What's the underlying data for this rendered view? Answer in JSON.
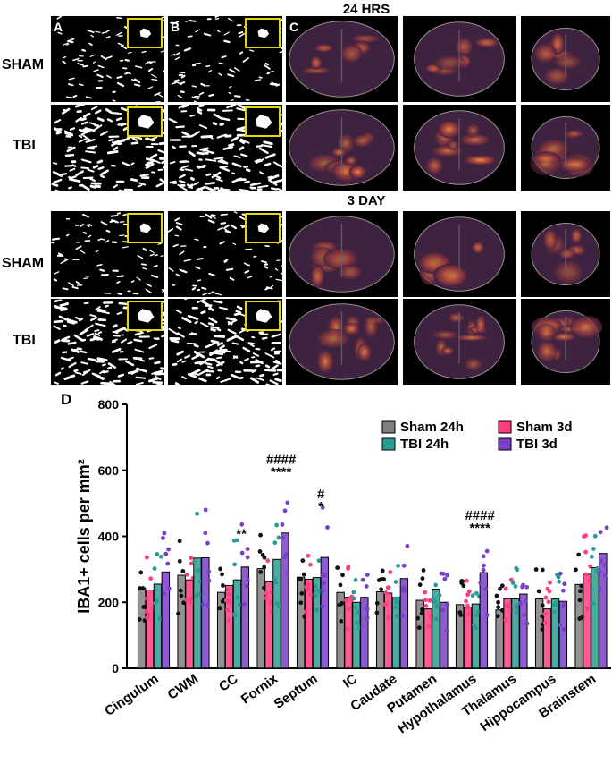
{
  "figure": {
    "section_top": "24 HRS",
    "section_bottom": "3 DAY",
    "row_labels": [
      "SHAM",
      "TBI",
      "SHAM",
      "TBI"
    ],
    "panel_letters": {
      "a": "A",
      "b": "B",
      "c": "C",
      "d": "D"
    }
  },
  "colors": {
    "sham_24h": "#7f7f7f",
    "sham_3d": "#ff3d7f",
    "tbi_24h": "#2a9d93",
    "tbi_3d": "#7a3fc8"
  },
  "chart_data": {
    "type": "bar",
    "ylabel": "IBA1+ cells per mm²",
    "ylim": [
      0,
      800
    ],
    "yticks": [
      0,
      200,
      400,
      600,
      800
    ],
    "categories": [
      "Cingulum",
      "CWM",
      "CC",
      "Fornix",
      "Septum",
      "IC",
      "Caudate",
      "Putamen",
      "Hypothalamus",
      "Thalamus",
      "Hippocampus",
      "Brainstem"
    ],
    "series": [
      {
        "name": "Sham 24h",
        "values": [
          243,
          282,
          230,
          302,
          276,
          230,
          232,
          206,
          193,
          177,
          210,
          254
        ]
      },
      {
        "name": "Sham 3d",
        "values": [
          237,
          268,
          251,
          262,
          270,
          215,
          228,
          180,
          185,
          211,
          180,
          285
        ]
      },
      {
        "name": "TBI 24h",
        "values": [
          255,
          334,
          268,
          330,
          275,
          200,
          215,
          240,
          195,
          210,
          210,
          305
        ]
      },
      {
        "name": "TBI 3d",
        "values": [
          292,
          335,
          307,
          410,
          336,
          215,
          272,
          200,
          290,
          225,
          203,
          348
        ]
      }
    ],
    "annotations": [
      {
        "category": "CC",
        "lines": [
          "**"
        ]
      },
      {
        "category": "Fornix",
        "lines": [
          "####",
          "****"
        ]
      },
      {
        "category": "Septum",
        "lines": [
          "#",
          "*"
        ]
      },
      {
        "category": "Hypothalamus",
        "lines": [
          "####",
          "****"
        ]
      }
    ],
    "legend_position": "top-right"
  }
}
